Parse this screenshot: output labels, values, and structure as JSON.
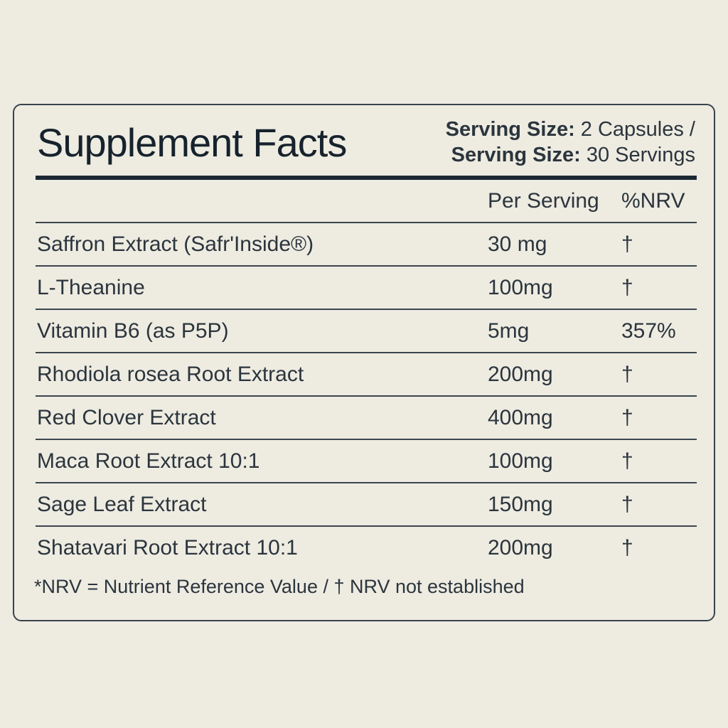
{
  "title": "Supplement Facts",
  "serving": {
    "line1_label": "Serving Size:",
    "line1_value": " 2 Capsules /",
    "line2_label": "Serving Size:",
    "line2_value": " 30 Servings"
  },
  "columns": {
    "name": "",
    "amount": "Per Serving",
    "nrv": "%NRV"
  },
  "rows": [
    {
      "name": "Saffron Extract (Safr'Inside®)",
      "amount": "30 mg",
      "nrv": "†"
    },
    {
      "name": "L-Theanine",
      "amount": "100mg",
      "nrv": "†"
    },
    {
      "name": "Vitamin B6 (as P5P)",
      "amount": "5mg",
      "nrv": "357%"
    },
    {
      "name": "Rhodiola rosea Root Extract",
      "amount": "200mg",
      "nrv": "†"
    },
    {
      "name": "Red Clover Extract",
      "amount": "400mg",
      "nrv": "†"
    },
    {
      "name": "Maca Root Extract 10:1",
      "amount": "100mg",
      "nrv": "†"
    },
    {
      "name": "Sage Leaf Extract",
      "amount": "150mg",
      "nrv": "†"
    },
    {
      "name": "Shatavari Root Extract 10:1",
      "amount": "200mg",
      "nrv": "†"
    }
  ],
  "footnote": "*NRV = Nutrient Reference Value / † NRV not established"
}
